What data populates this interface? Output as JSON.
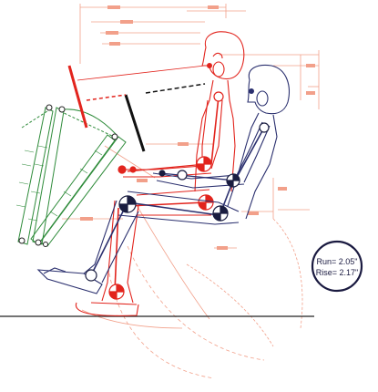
{
  "badge": {
    "run": "Run= 2.05\"",
    "rise": "Rise= 2.17\""
  },
  "colors": {
    "background": "#ffffff",
    "navy_figure": "#2a2f6e",
    "red_figure": "#e2241d",
    "green_linkage": "#2e8b3a",
    "salmon_dims": "#f2a08a",
    "black_bar": "#111111",
    "ground": "#222222"
  },
  "icons": {
    "upper_pivot": "circle-target-icon",
    "joint": "joint-circle-icon"
  }
}
